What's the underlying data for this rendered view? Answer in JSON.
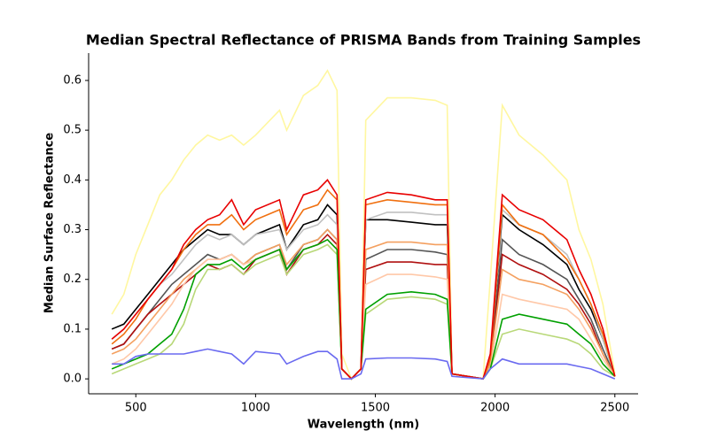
{
  "chart_data": {
    "type": "line",
    "title": "Median Spectral Reflectance of PRISMA Bands from Training Samples",
    "x_label": "Wavelength (nm)",
    "y_label": "Median Surface Reflectance",
    "x": [
      400,
      450,
      500,
      550,
      600,
      650,
      700,
      750,
      800,
      850,
      900,
      950,
      1000,
      1100,
      1130,
      1200,
      1260,
      1300,
      1340,
      1360,
      1400,
      1440,
      1460,
      1550,
      1650,
      1750,
      1800,
      1820,
      1950,
      1980,
      2030,
      2100,
      2200,
      2300,
      2350,
      2400,
      2450,
      2500
    ],
    "xlim": [
      303,
      2597
    ],
    "xticks": [
      500,
      1000,
      1500,
      2000,
      2500
    ],
    "ylim": [
      -0.03,
      0.655
    ],
    "yticks": [
      {
        "value": 0,
        "label": "0.0"
      },
      0.1,
      0.2,
      0.3,
      0.4,
      0.5,
      0.6
    ],
    "series": [
      {
        "color": "#fff7a0",
        "values": [
          0.13,
          0.17,
          0.25,
          0.31,
          0.37,
          0.4,
          0.44,
          0.47,
          0.49,
          0.48,
          0.49,
          0.47,
          0.49,
          0.54,
          0.5,
          0.57,
          0.59,
          0.62,
          0.58,
          0.05,
          0.0,
          0.02,
          0.52,
          0.565,
          0.565,
          0.56,
          0.55,
          0.01,
          0.0,
          0.2,
          0.55,
          0.49,
          0.45,
          0.4,
          0.3,
          0.24,
          0.15,
          0.01
        ]
      },
      {
        "color": "#000000",
        "values": [
          0.1,
          0.11,
          0.14,
          0.17,
          0.2,
          0.23,
          0.26,
          0.28,
          0.3,
          0.29,
          0.29,
          0.27,
          0.29,
          0.31,
          0.26,
          0.31,
          0.32,
          0.35,
          0.33,
          0.02,
          0.0,
          0.02,
          0.32,
          0.32,
          0.315,
          0.31,
          0.31,
          0.01,
          0.0,
          0.04,
          0.33,
          0.3,
          0.27,
          0.23,
          0.18,
          0.14,
          0.08,
          0.005
        ]
      },
      {
        "color": "#c0c0c0",
        "values": [
          0.08,
          0.1,
          0.13,
          0.16,
          0.19,
          0.21,
          0.24,
          0.27,
          0.29,
          0.28,
          0.29,
          0.27,
          0.29,
          0.3,
          0.26,
          0.3,
          0.31,
          0.33,
          0.31,
          0.02,
          0.0,
          0.02,
          0.32,
          0.335,
          0.335,
          0.33,
          0.33,
          0.01,
          0.0,
          0.04,
          0.34,
          0.31,
          0.29,
          0.25,
          0.2,
          0.15,
          0.08,
          0.005
        ]
      },
      {
        "color": "#555555",
        "values": [
          0.06,
          0.07,
          0.1,
          0.13,
          0.16,
          0.19,
          0.21,
          0.23,
          0.25,
          0.24,
          0.25,
          0.23,
          0.25,
          0.27,
          0.22,
          0.27,
          0.28,
          0.3,
          0.28,
          0.02,
          0.0,
          0.02,
          0.24,
          0.26,
          0.26,
          0.255,
          0.25,
          0.01,
          0.0,
          0.03,
          0.28,
          0.25,
          0.23,
          0.2,
          0.16,
          0.12,
          0.06,
          0.005
        ]
      },
      {
        "color": "#b01010",
        "values": [
          0.06,
          0.07,
          0.1,
          0.13,
          0.15,
          0.17,
          0.19,
          0.21,
          0.23,
          0.22,
          0.23,
          0.21,
          0.24,
          0.26,
          0.21,
          0.26,
          0.27,
          0.29,
          0.27,
          0.02,
          0.0,
          0.02,
          0.22,
          0.235,
          0.235,
          0.23,
          0.23,
          0.01,
          0.0,
          0.03,
          0.25,
          0.23,
          0.21,
          0.18,
          0.15,
          0.11,
          0.05,
          0.005
        ]
      },
      {
        "color": "#f4a060",
        "values": [
          0.05,
          0.06,
          0.08,
          0.11,
          0.14,
          0.17,
          0.2,
          0.22,
          0.24,
          0.24,
          0.25,
          0.23,
          0.25,
          0.27,
          0.23,
          0.27,
          0.28,
          0.3,
          0.28,
          0.02,
          0.0,
          0.02,
          0.26,
          0.275,
          0.275,
          0.27,
          0.27,
          0.01,
          0.0,
          0.03,
          0.22,
          0.2,
          0.19,
          0.17,
          0.14,
          0.1,
          0.05,
          0.005
        ]
      },
      {
        "color": "#ffc8a8",
        "values": [
          0.03,
          0.04,
          0.06,
          0.09,
          0.12,
          0.15,
          0.19,
          0.22,
          0.24,
          0.24,
          0.25,
          0.23,
          0.24,
          0.26,
          0.22,
          0.26,
          0.27,
          0.28,
          0.26,
          0.02,
          0.0,
          0.02,
          0.19,
          0.21,
          0.21,
          0.205,
          0.2,
          0.01,
          0.0,
          0.02,
          0.17,
          0.16,
          0.15,
          0.14,
          0.12,
          0.08,
          0.04,
          0.005
        ]
      },
      {
        "color": "#b8d878",
        "values": [
          0.01,
          0.02,
          0.03,
          0.04,
          0.05,
          0.07,
          0.11,
          0.18,
          0.22,
          0.22,
          0.23,
          0.21,
          0.23,
          0.25,
          0.21,
          0.25,
          0.26,
          0.27,
          0.25,
          0.02,
          0.0,
          0.02,
          0.13,
          0.16,
          0.165,
          0.16,
          0.15,
          0.01,
          0.0,
          0.02,
          0.09,
          0.1,
          0.09,
          0.08,
          0.07,
          0.05,
          0.02,
          0.005
        ]
      },
      {
        "color": "#00a000",
        "values": [
          0.02,
          0.03,
          0.04,
          0.05,
          0.07,
          0.09,
          0.14,
          0.21,
          0.23,
          0.23,
          0.24,
          0.22,
          0.24,
          0.26,
          0.22,
          0.26,
          0.27,
          0.28,
          0.26,
          0.02,
          0.0,
          0.02,
          0.14,
          0.17,
          0.175,
          0.17,
          0.16,
          0.01,
          0.0,
          0.02,
          0.12,
          0.13,
          0.12,
          0.11,
          0.09,
          0.07,
          0.03,
          0.005
        ]
      },
      {
        "color": "#f07010",
        "values": [
          0.07,
          0.09,
          0.12,
          0.16,
          0.19,
          0.22,
          0.26,
          0.29,
          0.31,
          0.31,
          0.33,
          0.3,
          0.32,
          0.34,
          0.29,
          0.34,
          0.35,
          0.38,
          0.36,
          0.02,
          0.0,
          0.02,
          0.35,
          0.36,
          0.355,
          0.35,
          0.35,
          0.01,
          0.0,
          0.04,
          0.35,
          0.31,
          0.29,
          0.24,
          0.2,
          0.15,
          0.09,
          0.005
        ]
      },
      {
        "color": "#e80000",
        "values": [
          0.08,
          0.1,
          0.13,
          0.16,
          0.19,
          0.22,
          0.27,
          0.3,
          0.32,
          0.33,
          0.36,
          0.31,
          0.34,
          0.36,
          0.3,
          0.37,
          0.38,
          0.4,
          0.37,
          0.02,
          0.0,
          0.02,
          0.36,
          0.375,
          0.37,
          0.36,
          0.36,
          0.01,
          0.0,
          0.05,
          0.37,
          0.34,
          0.32,
          0.28,
          0.22,
          0.17,
          0.1,
          0.005
        ]
      },
      {
        "color": "#6a6af0",
        "values": [
          0.03,
          0.03,
          0.045,
          0.05,
          0.05,
          0.05,
          0.05,
          0.055,
          0.06,
          0.055,
          0.05,
          0.03,
          0.055,
          0.05,
          0.03,
          0.045,
          0.055,
          0.055,
          0.04,
          0.0,
          0.0,
          0.01,
          0.04,
          0.042,
          0.042,
          0.04,
          0.035,
          0.005,
          0.0,
          0.02,
          0.04,
          0.03,
          0.03,
          0.03,
          0.025,
          0.02,
          0.01,
          0.0
        ]
      }
    ]
  }
}
